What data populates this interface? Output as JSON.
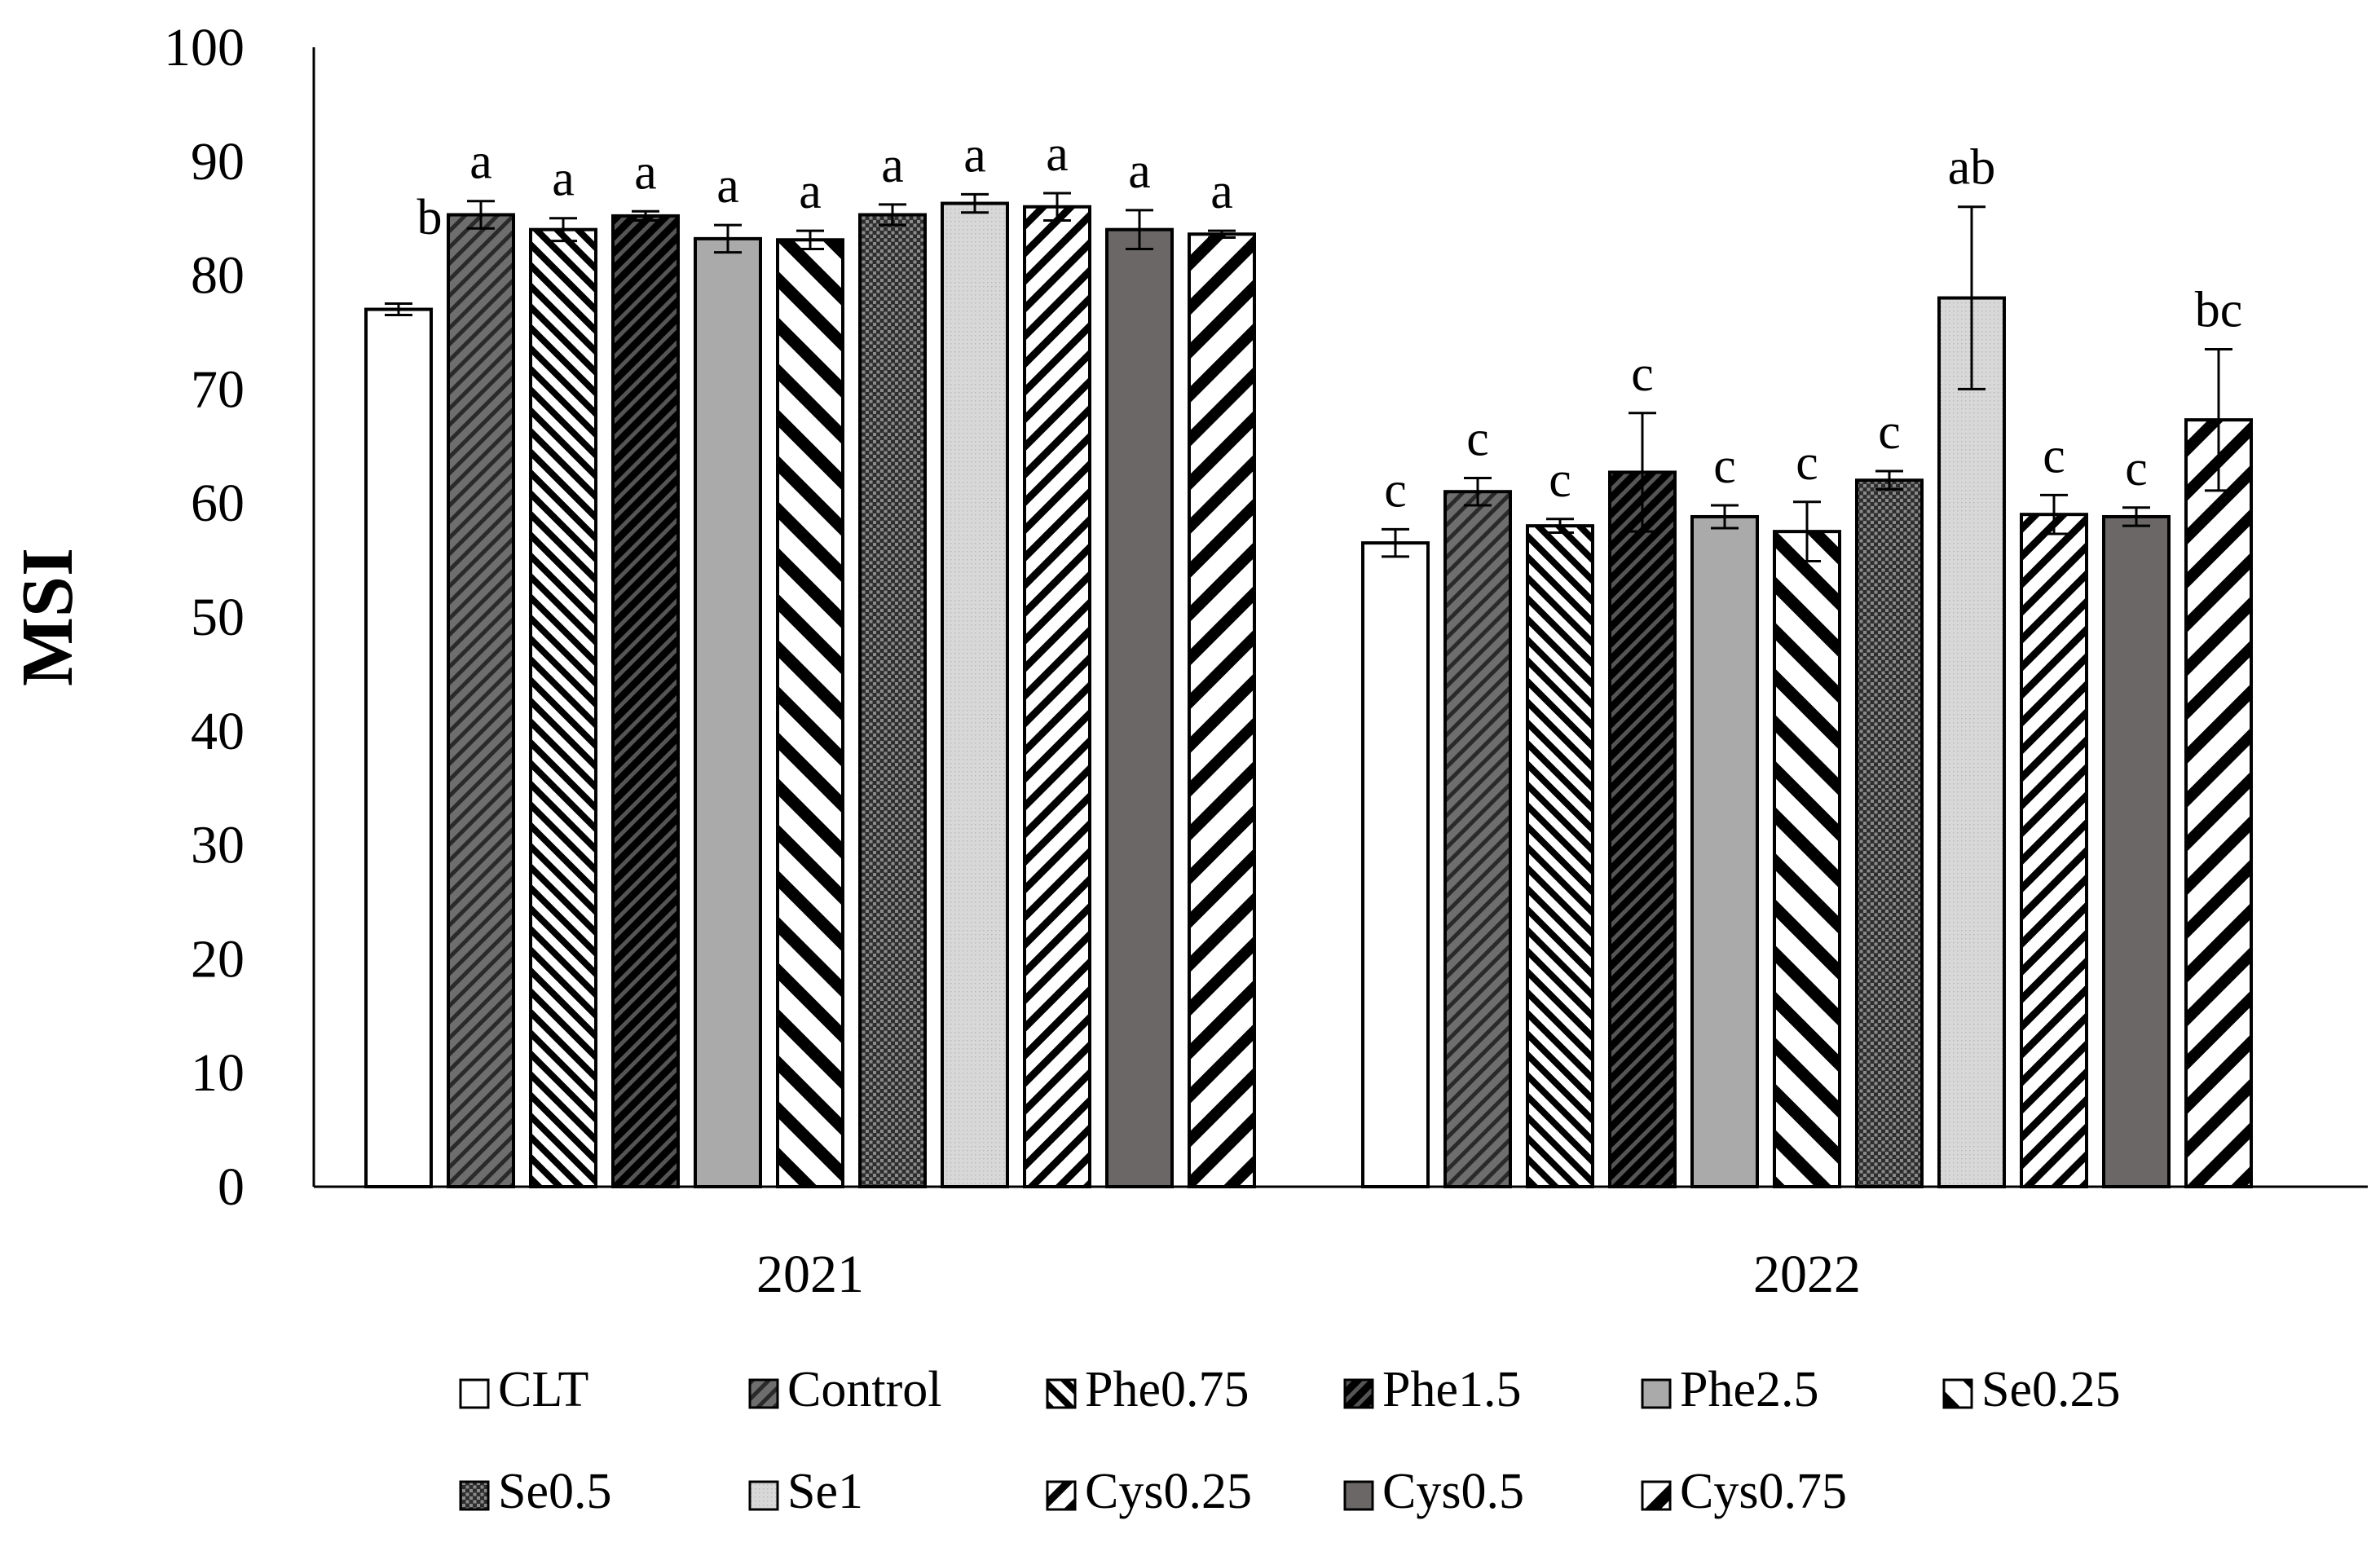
{
  "chart_data": {
    "type": "bar",
    "title": "",
    "xlabel": "",
    "ylabel": "MSI",
    "ylim": [
      0,
      100
    ],
    "yticks": [
      "0",
      "10",
      "20",
      "30",
      "40",
      "50",
      "60",
      "70",
      "80",
      "90",
      "100"
    ],
    "grid": false,
    "legend_position": "bottom",
    "categories": [
      "2021",
      "2022"
    ],
    "series": [
      {
        "name": "CLT",
        "pattern": "white",
        "values": [
          77,
          56.5
        ],
        "errors": [
          0.5,
          1.2
        ],
        "letters": [
          "b",
          "c"
        ]
      },
      {
        "name": "Control",
        "pattern": "dense-dark",
        "values": [
          85.3,
          61
        ],
        "errors": [
          1.2,
          1.2
        ],
        "letters": [
          "a",
          "c"
        ]
      },
      {
        "name": "Phe0.75",
        "pattern": "diag-bw",
        "values": [
          84,
          58
        ],
        "errors": [
          1.0,
          0.6
        ],
        "letters": [
          "a",
          "c"
        ]
      },
      {
        "name": "Phe1.5",
        "pattern": "diag-black",
        "values": [
          85.2,
          62.7
        ],
        "errors": [
          0.4,
          5.2
        ],
        "letters": [
          "a",
          "c"
        ]
      },
      {
        "name": "Phe2.5",
        "pattern": "gray",
        "values": [
          83.2,
          58.8
        ],
        "errors": [
          1.2,
          1.0
        ],
        "letters": [
          "a",
          "c"
        ]
      },
      {
        "name": "Se0.25",
        "pattern": "wide-diag",
        "values": [
          83.1,
          57.5
        ],
        "errors": [
          0.8,
          2.6
        ],
        "letters": [
          "a",
          "c"
        ]
      },
      {
        "name": "Se0.5",
        "pattern": "checker",
        "values": [
          85.3,
          62
        ],
        "errors": [
          0.9,
          0.8
        ],
        "letters": [
          "a",
          "c"
        ]
      },
      {
        "name": "Se1",
        "pattern": "light-gray",
        "values": [
          86.3,
          78
        ],
        "errors": [
          0.8,
          8.0
        ],
        "letters": [
          "a",
          "ab"
        ]
      },
      {
        "name": "Cys0.25",
        "pattern": "diag-white",
        "values": [
          86,
          59
        ],
        "errors": [
          1.2,
          1.7
        ],
        "letters": [
          "a",
          "c"
        ]
      },
      {
        "name": "Cys0.5",
        "pattern": "dark-gray",
        "values": [
          84,
          58.8
        ],
        "errors": [
          1.7,
          0.8
        ],
        "letters": [
          "a",
          "c"
        ]
      },
      {
        "name": "Cys0.75",
        "pattern": "thick-diag",
        "values": [
          83.6,
          67.3
        ],
        "errors": [
          0.3,
          6.2
        ],
        "letters": [
          "a",
          "bc"
        ]
      }
    ]
  }
}
